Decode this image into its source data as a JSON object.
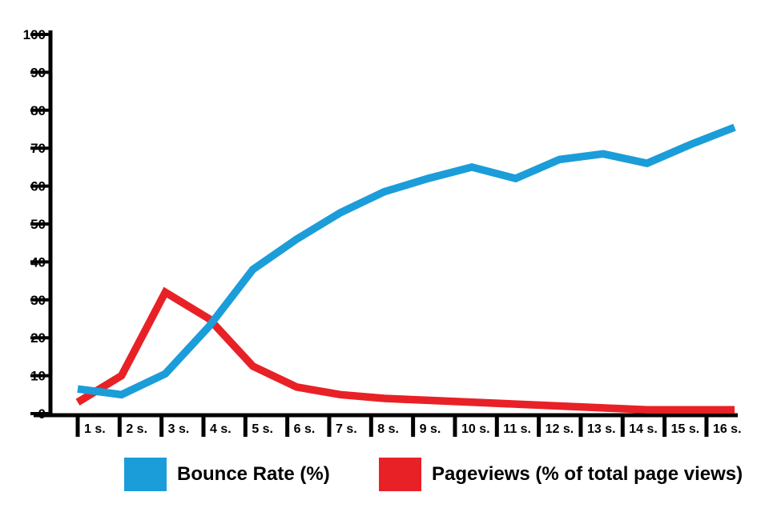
{
  "chart_data": {
    "type": "line",
    "title": "",
    "xlabel": "",
    "ylabel": "",
    "categories": [
      "1 s.",
      "2 s.",
      "3 s.",
      "4 s.",
      "5 s.",
      "6 s.",
      "7 s.",
      "8 s.",
      "9 s.",
      "10 s.",
      "11 s.",
      "12 s.",
      "13 s.",
      "14 s.",
      "15 s.",
      "16 s."
    ],
    "yticks": [
      0,
      10,
      20,
      30,
      40,
      50,
      60,
      70,
      80,
      90,
      100
    ],
    "ylim": [
      0,
      100
    ],
    "grid": false,
    "legend_position": "bottom",
    "axis_color": "#000000",
    "series": [
      {
        "key": "bounce-rate",
        "name": "Bounce Rate (%)",
        "color": "#1b9dd9",
        "values": [
          6.5,
          5,
          10.5,
          23,
          38,
          46,
          53,
          58.5,
          62,
          65,
          62,
          67,
          68.5,
          66,
          71,
          75.5
        ]
      },
      {
        "key": "pageviews",
        "name": "Pageviews (% of total page views)",
        "color": "#e82127",
        "values": [
          3,
          10,
          32,
          25,
          12.5,
          7,
          5,
          4,
          3.5,
          3,
          2.5,
          2,
          1.5,
          1,
          1,
          1
        ]
      }
    ]
  }
}
